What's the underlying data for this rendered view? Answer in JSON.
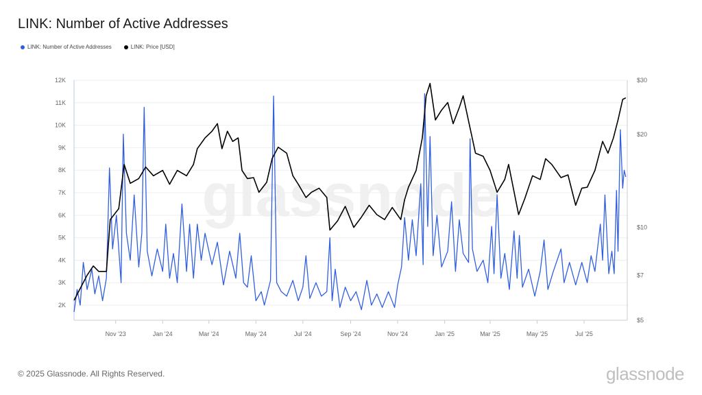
{
  "title": "LINK: Number of Active Addresses",
  "footer": "© 2025 Glassnode. All Rights Reserved.",
  "logo": "glassnode",
  "watermark": "glassnode",
  "chart_data": {
    "type": "line",
    "title": "LINK: Number of Active Addresses",
    "legend_position": "top-left",
    "grid": true,
    "x_range": [
      "2023-09-08",
      "2025-08-26"
    ],
    "x_ticks": [
      {
        "date": "2023-11-01",
        "label": "Nov '23"
      },
      {
        "date": "2024-01-01",
        "label": "Jan '24"
      },
      {
        "date": "2024-03-01",
        "label": "Mar '24"
      },
      {
        "date": "2024-05-01",
        "label": "May '24"
      },
      {
        "date": "2024-07-01",
        "label": "Jul '24"
      },
      {
        "date": "2024-09-01",
        "label": "Sep '24"
      },
      {
        "date": "2024-11-01",
        "label": "Nov '24"
      },
      {
        "date": "2025-01-01",
        "label": "Jan '25"
      },
      {
        "date": "2025-03-01",
        "label": "Mar '25"
      },
      {
        "date": "2025-05-01",
        "label": "May '25"
      },
      {
        "date": "2025-07-01",
        "label": "Jul '25"
      }
    ],
    "y_left": {
      "range": [
        1330,
        12000
      ],
      "ticks": [
        {
          "v": 2000,
          "label": "2K"
        },
        {
          "v": 3000,
          "label": "3K"
        },
        {
          "v": 4000,
          "label": "4K"
        },
        {
          "v": 5000,
          "label": "5K"
        },
        {
          "v": 6000,
          "label": "6K"
        },
        {
          "v": 7000,
          "label": "7K"
        },
        {
          "v": 8000,
          "label": "8K"
        },
        {
          "v": 9000,
          "label": "9K"
        },
        {
          "v": 10000,
          "label": "10K"
        },
        {
          "v": 11000,
          "label": "11K"
        },
        {
          "v": 12000,
          "label": "12K"
        }
      ]
    },
    "y_right": {
      "scale": "log",
      "range": [
        5,
        30
      ],
      "ticks": [
        {
          "v": 5,
          "label": "$5"
        },
        {
          "v": 7,
          "label": "$7"
        },
        {
          "v": 10,
          "label": "$10"
        },
        {
          "v": 20,
          "label": "$20"
        },
        {
          "v": 30,
          "label": "$30"
        }
      ]
    },
    "series": [
      {
        "name": "LINK: Number of Active Addresses",
        "axis": "left",
        "color": "#2f5ee0",
        "points": [
          [
            "2023-09-08",
            1700
          ],
          [
            "2023-09-12",
            2700
          ],
          [
            "2023-09-16",
            2000
          ],
          [
            "2023-09-20",
            3900
          ],
          [
            "2023-09-25",
            2700
          ],
          [
            "2023-10-01",
            3600
          ],
          [
            "2023-10-05",
            2500
          ],
          [
            "2023-10-10",
            3300
          ],
          [
            "2023-10-15",
            2200
          ],
          [
            "2023-10-20",
            3200
          ],
          [
            "2023-10-24",
            8100
          ],
          [
            "2023-10-28",
            4500
          ],
          [
            "2023-11-02",
            6000
          ],
          [
            "2023-11-08",
            3000
          ],
          [
            "2023-11-11",
            9600
          ],
          [
            "2023-11-15",
            5200
          ],
          [
            "2023-11-20",
            4000
          ],
          [
            "2023-11-25",
            6900
          ],
          [
            "2023-12-01",
            3700
          ],
          [
            "2023-12-05",
            5200
          ],
          [
            "2023-12-08",
            10800
          ],
          [
            "2023-12-12",
            4400
          ],
          [
            "2023-12-18",
            3300
          ],
          [
            "2023-12-25",
            4500
          ],
          [
            "2024-01-01",
            3500
          ],
          [
            "2024-01-05",
            5600
          ],
          [
            "2024-01-10",
            3200
          ],
          [
            "2024-01-15",
            4300
          ],
          [
            "2024-01-20",
            3000
          ],
          [
            "2024-01-26",
            6500
          ],
          [
            "2024-02-01",
            3500
          ],
          [
            "2024-02-05",
            5600
          ],
          [
            "2024-02-10",
            3200
          ],
          [
            "2024-02-15",
            5600
          ],
          [
            "2024-02-20",
            4000
          ],
          [
            "2024-02-25",
            5200
          ],
          [
            "2024-03-01",
            4400
          ],
          [
            "2024-03-05",
            3800
          ],
          [
            "2024-03-12",
            4800
          ],
          [
            "2024-03-20",
            2900
          ],
          [
            "2024-03-28",
            4400
          ],
          [
            "2024-04-05",
            3200
          ],
          [
            "2024-04-10",
            5200
          ],
          [
            "2024-04-15",
            3000
          ],
          [
            "2024-04-20",
            2800
          ],
          [
            "2024-04-25",
            4200
          ],
          [
            "2024-05-01",
            2200
          ],
          [
            "2024-05-08",
            2600
          ],
          [
            "2024-05-12",
            2000
          ],
          [
            "2024-05-20",
            3100
          ],
          [
            "2024-05-24",
            11300
          ],
          [
            "2024-05-28",
            3000
          ],
          [
            "2024-06-03",
            2600
          ],
          [
            "2024-06-10",
            2400
          ],
          [
            "2024-06-18",
            3100
          ],
          [
            "2024-06-25",
            2200
          ],
          [
            "2024-07-01",
            2800
          ],
          [
            "2024-07-05",
            4200
          ],
          [
            "2024-07-10",
            2300
          ],
          [
            "2024-07-18",
            3000
          ],
          [
            "2024-07-25",
            2400
          ],
          [
            "2024-08-01",
            2600
          ],
          [
            "2024-08-05",
            5000
          ],
          [
            "2024-08-08",
            2200
          ],
          [
            "2024-08-12",
            3600
          ],
          [
            "2024-08-18",
            1900
          ],
          [
            "2024-08-25",
            2800
          ],
          [
            "2024-09-01",
            2200
          ],
          [
            "2024-09-08",
            2600
          ],
          [
            "2024-09-15",
            1800
          ],
          [
            "2024-09-22",
            3100
          ],
          [
            "2024-09-28",
            2000
          ],
          [
            "2024-10-05",
            2500
          ],
          [
            "2024-10-12",
            1900
          ],
          [
            "2024-10-20",
            2600
          ],
          [
            "2024-10-28",
            1900
          ],
          [
            "2024-11-01",
            2900
          ],
          [
            "2024-11-06",
            3700
          ],
          [
            "2024-11-10",
            5900
          ],
          [
            "2024-11-15",
            4000
          ],
          [
            "2024-11-20",
            5800
          ],
          [
            "2024-11-25",
            4200
          ],
          [
            "2024-12-01",
            7400
          ],
          [
            "2024-12-04",
            3800
          ],
          [
            "2024-12-06",
            11400
          ],
          [
            "2024-12-10",
            5500
          ],
          [
            "2024-12-13",
            9500
          ],
          [
            "2024-12-17",
            4200
          ],
          [
            "2024-12-22",
            6000
          ],
          [
            "2024-12-28",
            3700
          ],
          [
            "2025-01-05",
            4400
          ],
          [
            "2025-01-10",
            6600
          ],
          [
            "2025-01-15",
            3500
          ],
          [
            "2025-01-20",
            5800
          ],
          [
            "2025-01-25",
            4300
          ],
          [
            "2025-02-01",
            3900
          ],
          [
            "2025-02-03",
            9400
          ],
          [
            "2025-02-06",
            4500
          ],
          [
            "2025-02-12",
            3500
          ],
          [
            "2025-02-20",
            4000
          ],
          [
            "2025-02-26",
            3000
          ],
          [
            "2025-03-03",
            5500
          ],
          [
            "2025-03-06",
            3400
          ],
          [
            "2025-03-10",
            6900
          ],
          [
            "2025-03-15",
            3200
          ],
          [
            "2025-03-20",
            4300
          ],
          [
            "2025-03-26",
            2700
          ],
          [
            "2025-04-01",
            5300
          ],
          [
            "2025-04-05",
            3200
          ],
          [
            "2025-04-08",
            5100
          ],
          [
            "2025-04-12",
            2800
          ],
          [
            "2025-04-20",
            3600
          ],
          [
            "2025-04-28",
            2400
          ],
          [
            "2025-05-05",
            3500
          ],
          [
            "2025-05-10",
            4900
          ],
          [
            "2025-05-15",
            2700
          ],
          [
            "2025-05-22",
            3500
          ],
          [
            "2025-06-01",
            4500
          ],
          [
            "2025-06-05",
            3000
          ],
          [
            "2025-06-12",
            3900
          ],
          [
            "2025-06-20",
            2900
          ],
          [
            "2025-06-28",
            3900
          ],
          [
            "2025-07-05",
            3000
          ],
          [
            "2025-07-10",
            4200
          ],
          [
            "2025-07-15",
            3500
          ],
          [
            "2025-07-22",
            5600
          ],
          [
            "2025-07-25",
            4000
          ],
          [
            "2025-07-28",
            6900
          ],
          [
            "2025-08-02",
            3400
          ],
          [
            "2025-08-06",
            4400
          ],
          [
            "2025-08-09",
            3400
          ],
          [
            "2025-08-12",
            7100
          ],
          [
            "2025-08-14",
            4400
          ],
          [
            "2025-08-17",
            9800
          ],
          [
            "2025-08-20",
            7200
          ],
          [
            "2025-08-22",
            8000
          ],
          [
            "2025-08-24",
            7700
          ]
        ]
      },
      {
        "name": "LINK: Price [USD]",
        "axis": "right",
        "color": "#000000",
        "points": [
          [
            "2023-09-08",
            5.8
          ],
          [
            "2023-09-25",
            7.0
          ],
          [
            "2023-10-03",
            7.5
          ],
          [
            "2023-10-10",
            7.2
          ],
          [
            "2023-10-20",
            7.2
          ],
          [
            "2023-10-25",
            10.6
          ],
          [
            "2023-11-05",
            11.5
          ],
          [
            "2023-11-12",
            16
          ],
          [
            "2023-11-20",
            13.9
          ],
          [
            "2023-12-01",
            14.4
          ],
          [
            "2023-12-10",
            15.7
          ],
          [
            "2023-12-20",
            14.7
          ],
          [
            "2024-01-01",
            15.3
          ],
          [
            "2024-01-10",
            13.8
          ],
          [
            "2024-01-20",
            15.3
          ],
          [
            "2024-02-01",
            14.7
          ],
          [
            "2024-02-10",
            16
          ],
          [
            "2024-02-15",
            18
          ],
          [
            "2024-02-25",
            19.5
          ],
          [
            "2024-03-05",
            20.5
          ],
          [
            "2024-03-12",
            21.7
          ],
          [
            "2024-03-18",
            18
          ],
          [
            "2024-03-25",
            20.5
          ],
          [
            "2024-04-01",
            19
          ],
          [
            "2024-04-08",
            19.5
          ],
          [
            "2024-04-13",
            15.3
          ],
          [
            "2024-04-20",
            14.4
          ],
          [
            "2024-04-28",
            14.5
          ],
          [
            "2024-05-05",
            13
          ],
          [
            "2024-05-15",
            14
          ],
          [
            "2024-05-22",
            16.7
          ],
          [
            "2024-05-30",
            18.2
          ],
          [
            "2024-06-10",
            17.4
          ],
          [
            "2024-06-18",
            14.7
          ],
          [
            "2024-06-25",
            13.8
          ],
          [
            "2024-07-05",
            12.5
          ],
          [
            "2024-07-12",
            13
          ],
          [
            "2024-07-22",
            13.4
          ],
          [
            "2024-08-01",
            12.5
          ],
          [
            "2024-08-05",
            9.8
          ],
          [
            "2024-08-15",
            10.5
          ],
          [
            "2024-08-25",
            11.7
          ],
          [
            "2024-09-05",
            10
          ],
          [
            "2024-09-15",
            10.8
          ],
          [
            "2024-09-25",
            11.8
          ],
          [
            "2024-10-05",
            11
          ],
          [
            "2024-10-15",
            10.6
          ],
          [
            "2024-10-25",
            11.6
          ],
          [
            "2024-11-05",
            10.6
          ],
          [
            "2024-11-10",
            12.3
          ],
          [
            "2024-11-15",
            13.5
          ],
          [
            "2024-11-25",
            15.3
          ],
          [
            "2024-12-03",
            19.5
          ],
          [
            "2024-12-08",
            26.7
          ],
          [
            "2024-12-13",
            29.3
          ],
          [
            "2024-12-20",
            22.3
          ],
          [
            "2024-12-28",
            24
          ],
          [
            "2025-01-05",
            25.4
          ],
          [
            "2025-01-12",
            21.7
          ],
          [
            "2025-01-20",
            24.5
          ],
          [
            "2025-01-25",
            26.7
          ],
          [
            "2025-02-03",
            21
          ],
          [
            "2025-02-10",
            17.4
          ],
          [
            "2025-02-20",
            17
          ],
          [
            "2025-03-01",
            15.3
          ],
          [
            "2025-03-10",
            13
          ],
          [
            "2025-03-20",
            14.3
          ],
          [
            "2025-03-25",
            16
          ],
          [
            "2025-04-07",
            11
          ],
          [
            "2025-04-15",
            12.4
          ],
          [
            "2025-04-25",
            14.7
          ],
          [
            "2025-05-05",
            14.3
          ],
          [
            "2025-05-12",
            16.7
          ],
          [
            "2025-05-20",
            16
          ],
          [
            "2025-06-01",
            14.5
          ],
          [
            "2025-06-10",
            14.8
          ],
          [
            "2025-06-20",
            11.8
          ],
          [
            "2025-06-28",
            13.4
          ],
          [
            "2025-07-05",
            13.5
          ],
          [
            "2025-07-15",
            15.3
          ],
          [
            "2025-07-25",
            19
          ],
          [
            "2025-08-01",
            17.4
          ],
          [
            "2025-08-08",
            19.5
          ],
          [
            "2025-08-14",
            22.3
          ],
          [
            "2025-08-20",
            26
          ],
          [
            "2025-08-24",
            26.3
          ]
        ]
      }
    ]
  }
}
